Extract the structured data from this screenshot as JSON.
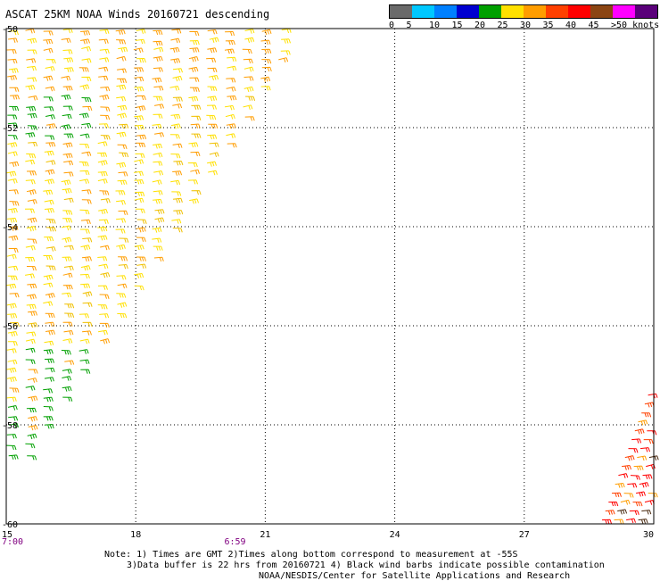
{
  "title": "ASCAT 25KM NOAA Winds 20160721 descending",
  "legend": {
    "labels": [
      "0",
      "5",
      "10",
      "15",
      "20",
      "25",
      "30",
      "35",
      "40",
      "45",
      ">50 knots"
    ],
    "colors": [
      "#6a6a6a",
      "#00c8ff",
      "#0080ff",
      "#0000d0",
      "#00a000",
      "#ffe000",
      "#ff9d00",
      "#ff4000",
      "#ff0000",
      "#8b4513",
      "#ff00ff",
      "#5a007a"
    ]
  },
  "map": {
    "lon_min": 15,
    "lon_max": 30,
    "lat_min": -60,
    "lat_max": -50,
    "lat_labels": [
      "-50",
      "-52",
      "-54",
      "-56",
      "-58",
      "-60"
    ],
    "lon_labels": [
      "15",
      "18",
      "21",
      "24",
      "27",
      "30"
    ],
    "time_labels": [
      {
        "text": "7:00",
        "lon": 15
      },
      {
        "text": "6:59",
        "lon": 20.3
      }
    ],
    "time_color": "#800080"
  },
  "notes": {
    "line1": "Note: 1) Times are GMT 2)Times along bottom correspond to measurement at -55S",
    "line2": "3)Data buffer is 22 hrs from 20160721 4) Black wind barbs indicate possible contamination",
    "line3": "NOAA/NESDIS/Center for Satellite Applications and Research"
  }
}
